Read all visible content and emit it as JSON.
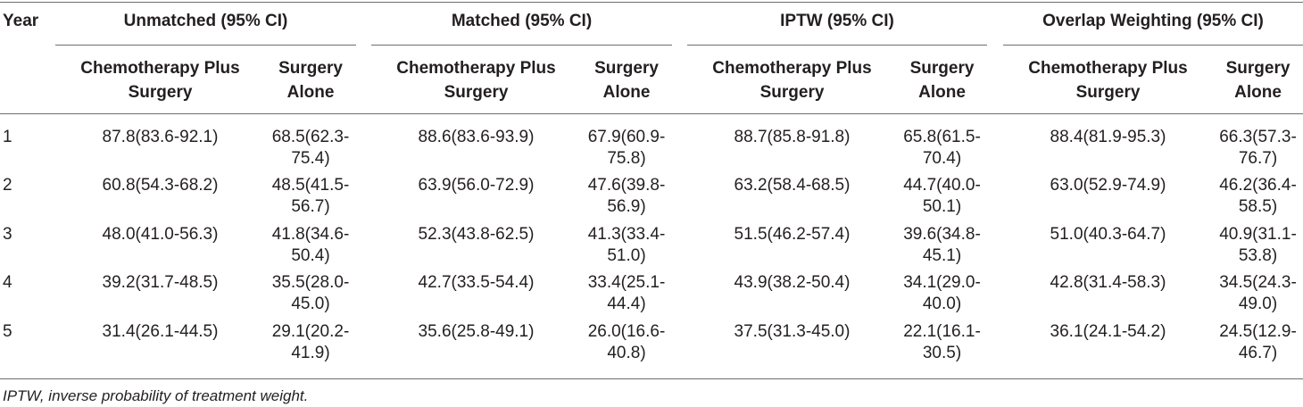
{
  "table": {
    "year_header": "Year",
    "groups": [
      {
        "label": "Unmatched (95% CI)",
        "col1": [
          "Chemotherapy Plus",
          "Surgery"
        ],
        "col2": [
          "Surgery",
          "Alone"
        ]
      },
      {
        "label": "Matched (95% CI)",
        "col1": [
          "Chemotherapy Plus",
          "Surgery"
        ],
        "col2": [
          "Surgery",
          "Alone"
        ]
      },
      {
        "label": "IPTW (95% CI)",
        "col1": [
          "Chemotherapy Plus",
          "Surgery"
        ],
        "col2": [
          "Surgery",
          "Alone"
        ]
      },
      {
        "label": "Overlap Weighting (95% CI)",
        "col1": [
          "Chemotherapy Plus",
          "Surgery"
        ],
        "col2": [
          "Surgery",
          "Alone"
        ]
      }
    ],
    "rows": [
      {
        "year": "1",
        "cells": [
          [
            "87.8(83.6-92.1)"
          ],
          [
            "68.5(62.3-",
            "75.4)"
          ],
          [
            "88.6(83.6-93.9)"
          ],
          [
            "67.9(60.9-",
            "75.8)"
          ],
          [
            "88.7(85.8-91.8)"
          ],
          [
            "65.8(61.5-",
            "70.4)"
          ],
          [
            "88.4(81.9-95.3)"
          ],
          [
            "66.3(57.3-",
            "76.7)"
          ]
        ]
      },
      {
        "year": "2",
        "cells": [
          [
            "60.8(54.3-68.2)"
          ],
          [
            "48.5(41.5-",
            "56.7)"
          ],
          [
            "63.9(56.0-72.9)"
          ],
          [
            "47.6(39.8-",
            "56.9)"
          ],
          [
            "63.2(58.4-68.5)"
          ],
          [
            "44.7(40.0-",
            "50.1)"
          ],
          [
            "63.0(52.9-74.9)"
          ],
          [
            "46.2(36.4-",
            "58.5)"
          ]
        ]
      },
      {
        "year": "3",
        "cells": [
          [
            "48.0(41.0-56.3)"
          ],
          [
            "41.8(34.6-",
            "50.4)"
          ],
          [
            "52.3(43.8-62.5)"
          ],
          [
            "41.3(33.4-",
            "51.0)"
          ],
          [
            "51.5(46.2-57.4)"
          ],
          [
            "39.6(34.8-",
            "45.1)"
          ],
          [
            "51.0(40.3-64.7)"
          ],
          [
            "40.9(31.1-",
            "53.8)"
          ]
        ]
      },
      {
        "year": "4",
        "cells": [
          [
            "39.2(31.7-48.5)"
          ],
          [
            "35.5(28.0-",
            "45.0)"
          ],
          [
            "42.7(33.5-54.4)"
          ],
          [
            "33.4(25.1-",
            "44.4)"
          ],
          [
            "43.9(38.2-50.4)"
          ],
          [
            "34.1(29.0-",
            "40.0)"
          ],
          [
            "42.8(31.4-58.3)"
          ],
          [
            "34.5(24.3-",
            "49.0)"
          ]
        ]
      },
      {
        "year": "5",
        "cells": [
          [
            "31.4(26.1-44.5)"
          ],
          [
            "29.1(20.2-",
            "41.9)"
          ],
          [
            "35.6(25.8-49.1)"
          ],
          [
            "26.0(16.6-",
            "40.8)"
          ],
          [
            "37.5(31.3-45.0)"
          ],
          [
            "22.1(16.1-",
            "30.5)"
          ],
          [
            "36.1(24.1-54.2)"
          ],
          [
            "24.5(12.9-",
            "46.7)"
          ]
        ]
      }
    ],
    "footnote": "IPTW, inverse probability of treatment weight."
  }
}
